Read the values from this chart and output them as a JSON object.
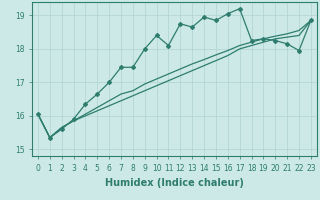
{
  "xlabel": "Humidex (Indice chaleur)",
  "ylabel": "",
  "bg_color": "#cce9e8",
  "line_color": "#2e7d6e",
  "grid_color": "#afd4d2",
  "x_values": [
    0,
    1,
    2,
    3,
    4,
    5,
    6,
    7,
    8,
    9,
    10,
    11,
    12,
    13,
    14,
    15,
    16,
    17,
    18,
    19,
    20,
    21,
    22,
    23
  ],
  "line1_y": [
    16.05,
    15.35,
    15.6,
    15.9,
    16.35,
    16.65,
    17.0,
    17.45,
    17.45,
    18.0,
    18.4,
    18.1,
    18.75,
    18.65,
    18.95,
    18.85,
    19.05,
    19.2,
    18.25,
    18.3,
    18.25,
    18.15,
    17.95,
    18.85
  ],
  "line2_y": [
    16.05,
    15.35,
    15.65,
    15.85,
    16.0,
    16.15,
    16.3,
    16.45,
    16.6,
    16.75,
    16.9,
    17.05,
    17.2,
    17.35,
    17.5,
    17.65,
    17.8,
    18.0,
    18.1,
    18.2,
    18.3,
    18.35,
    18.4,
    18.85
  ],
  "line3_y": [
    16.05,
    15.35,
    15.65,
    15.85,
    16.05,
    16.25,
    16.45,
    16.65,
    16.75,
    16.95,
    17.1,
    17.25,
    17.4,
    17.55,
    17.68,
    17.82,
    17.95,
    18.1,
    18.2,
    18.3,
    18.38,
    18.45,
    18.55,
    18.85
  ],
  "ylim": [
    14.8,
    19.4
  ],
  "yticks": [
    15,
    16,
    17,
    18,
    19
  ],
  "xlim": [
    -0.5,
    23.5
  ],
  "marker": "D",
  "marker_size": 2.0,
  "linewidth": 0.9,
  "label_fontsize": 7,
  "tick_fontsize": 5.5
}
